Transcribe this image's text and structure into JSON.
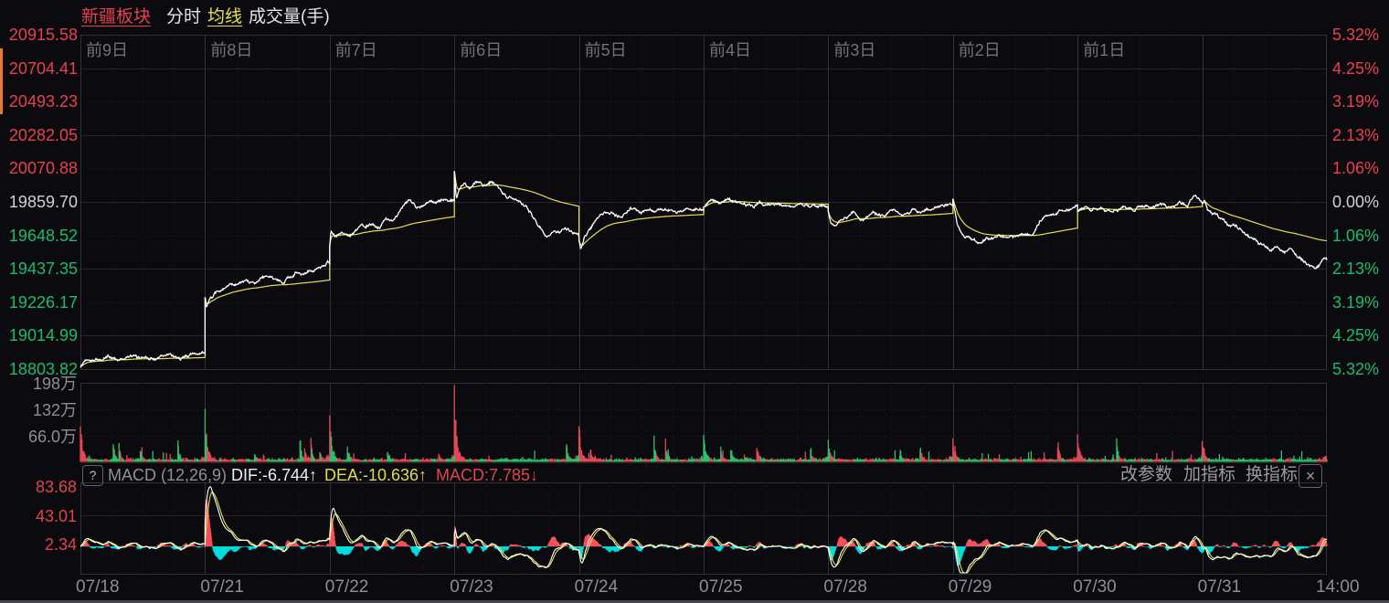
{
  "toolbar": {
    "title": "新疆板块",
    "tab_minute": "分时",
    "tab_ma": "均线",
    "tab_volume": "成交量(手)"
  },
  "colors": {
    "up": "#e8414e",
    "down": "#17bd6e",
    "flat": "#cfcfd6",
    "price_line": "#ffffff",
    "ma_line": "#e5e04a",
    "macd_dif": "#ffffff",
    "macd_dea": "#e5e04a",
    "hist_pos": "#f4515c",
    "hist_neg": "#00dcdc",
    "vol_up": "#e04956",
    "vol_down": "#2fbf6b",
    "grid": "#26262c",
    "grid_strong": "#30303a",
    "grid_dot": "#1e1e26",
    "text_gray": "#8d8d96",
    "text_dim": "#72727b",
    "macd_axis": "#e0434d"
  },
  "price_axis": {
    "left_labels": [
      "20915.58",
      "20704.41",
      "20493.23",
      "20282.05",
      "20070.88",
      "19859.70",
      "19648.52",
      "19437.35",
      "19226.17",
      "19014.99",
      "18803.82"
    ],
    "right_labels": [
      "5.32%",
      "4.25%",
      "3.19%",
      "2.13%",
      "1.06%",
      "0.00%",
      "1.06%",
      "2.13%",
      "3.19%",
      "4.25%",
      "5.32%"
    ]
  },
  "volume_axis": [
    "198万",
    "132万",
    "66.0万"
  ],
  "day_labels": [
    "前9日",
    "前8日",
    "前7日",
    "前6日",
    "前5日",
    "前4日",
    "前3日",
    "前2日",
    "前1日"
  ],
  "x_axis": [
    "07/18",
    "07/21",
    "07/22",
    "07/23",
    "07/24",
    "07/25",
    "07/28",
    "07/29",
    "07/30",
    "07/31"
  ],
  "x_axis_time": "14:00",
  "macd": {
    "help": "?",
    "name": "MACD (12,26,9)",
    "dif_label": "DIF:-6.744↑",
    "dea_label": "DEA:-10.636↑",
    "macd_label": "MACD:7.785↓",
    "btn_params": "改参数",
    "btn_add": "加指标",
    "btn_switch": "换指标",
    "close": "×",
    "axis": [
      "83.68",
      "43.01",
      "2.34"
    ]
  },
  "chart_data": {
    "type": "line",
    "panes": [
      "price",
      "volume",
      "macd"
    ],
    "price": {
      "ylim": [
        18803.82,
        20915.58
      ],
      "baseline": 19859.7,
      "pct_lim": [
        -5.32,
        5.32
      ],
      "days": [
        {
          "date": "07/18",
          "anchors": [
            [
              0,
              18815
            ],
            [
              0.04,
              18862
            ],
            [
              0.1,
              18875
            ],
            [
              0.16,
              18860
            ],
            [
              0.22,
              18880
            ],
            [
              0.3,
              18866
            ],
            [
              0.38,
              18884
            ],
            [
              0.46,
              18870
            ],
            [
              0.54,
              18890
            ],
            [
              0.62,
              18875
            ],
            [
              0.72,
              18894
            ],
            [
              0.82,
              18880
            ],
            [
              0.92,
              18898
            ],
            [
              1,
              18902
            ]
          ]
        },
        {
          "date": "07/21",
          "anchors": [
            [
              0,
              19258
            ],
            [
              0.01,
              19198
            ],
            [
              0.04,
              19262
            ],
            [
              0.1,
              19285
            ],
            [
              0.18,
              19315
            ],
            [
              0.28,
              19345
            ],
            [
              0.36,
              19330
            ],
            [
              0.45,
              19375
            ],
            [
              0.55,
              19385
            ],
            [
              0.63,
              19370
            ],
            [
              0.72,
              19410
            ],
            [
              0.8,
              19415
            ],
            [
              0.88,
              19435
            ],
            [
              0.94,
              19445
            ],
            [
              0.985,
              19480
            ],
            [
              1,
              19458
            ]
          ]
        },
        {
          "date": "07/22",
          "anchors": [
            [
              0,
              19582
            ],
            [
              0.01,
              19668
            ],
            [
              0.04,
              19630
            ],
            [
              0.1,
              19665
            ],
            [
              0.16,
              19640
            ],
            [
              0.24,
              19690
            ],
            [
              0.32,
              19715
            ],
            [
              0.4,
              19700
            ],
            [
              0.45,
              19760
            ],
            [
              0.5,
              19745
            ],
            [
              0.57,
              19810
            ],
            [
              0.63,
              19865
            ],
            [
              0.7,
              19835
            ],
            [
              0.78,
              19865
            ],
            [
              0.85,
              19850
            ],
            [
              0.92,
              19872
            ],
            [
              1,
              19868
            ]
          ]
        },
        {
          "date": "07/23",
          "anchors": [
            [
              0,
              20055
            ],
            [
              0.015,
              19885
            ],
            [
              0.04,
              19935
            ],
            [
              0.08,
              19985
            ],
            [
              0.12,
              19950
            ],
            [
              0.17,
              19992
            ],
            [
              0.23,
              19975
            ],
            [
              0.3,
              19998
            ],
            [
              0.36,
              19940
            ],
            [
              0.43,
              19892
            ],
            [
              0.5,
              19862
            ],
            [
              0.57,
              19828
            ],
            [
              0.63,
              19758
            ],
            [
              0.69,
              19700
            ],
            [
              0.75,
              19648
            ],
            [
              0.79,
              19692
            ],
            [
              0.84,
              19662
            ],
            [
              0.89,
              19703
            ],
            [
              0.95,
              19678
            ],
            [
              1,
              19652
            ]
          ]
        },
        {
          "date": "07/24",
          "anchors": [
            [
              0,
              19618
            ],
            [
              0.012,
              19558
            ],
            [
              0.05,
              19652
            ],
            [
              0.1,
              19705
            ],
            [
              0.17,
              19758
            ],
            [
              0.25,
              19800
            ],
            [
              0.33,
              19778
            ],
            [
              0.42,
              19808
            ],
            [
              0.5,
              19788
            ],
            [
              0.58,
              19818
            ],
            [
              0.66,
              19795
            ],
            [
              0.75,
              19822
            ],
            [
              0.83,
              19802
            ],
            [
              0.9,
              19828
            ],
            [
              1,
              19818
            ]
          ]
        },
        {
          "date": "07/25",
          "anchors": [
            [
              0,
              19828
            ],
            [
              0.06,
              19868
            ],
            [
              0.13,
              19845
            ],
            [
              0.2,
              19878
            ],
            [
              0.28,
              19856
            ],
            [
              0.36,
              19838
            ],
            [
              0.45,
              19858
            ],
            [
              0.53,
              19832
            ],
            [
              0.62,
              19845
            ],
            [
              0.7,
              19820
            ],
            [
              0.78,
              19838
            ],
            [
              0.86,
              19818
            ],
            [
              0.93,
              19832
            ],
            [
              1,
              19822
            ]
          ]
        },
        {
          "date": "07/28",
          "anchors": [
            [
              0,
              19798
            ],
            [
              0.02,
              19722
            ],
            [
              0.06,
              19698
            ],
            [
              0.12,
              19758
            ],
            [
              0.2,
              19788
            ],
            [
              0.28,
              19756
            ],
            [
              0.36,
              19796
            ],
            [
              0.44,
              19775
            ],
            [
              0.52,
              19806
            ],
            [
              0.6,
              19785
            ],
            [
              0.68,
              19812
            ],
            [
              0.76,
              19795
            ],
            [
              0.84,
              19818
            ],
            [
              0.9,
              19832
            ],
            [
              0.96,
              19845
            ],
            [
              1,
              19858
            ]
          ]
        },
        {
          "date": "07/29",
          "anchors": [
            [
              0,
              19880
            ],
            [
              0.012,
              19802
            ],
            [
              0.035,
              19702
            ],
            [
              0.08,
              19648
            ],
            [
              0.14,
              19622
            ],
            [
              0.2,
              19610
            ],
            [
              0.27,
              19642
            ],
            [
              0.33,
              19628
            ],
            [
              0.4,
              19645
            ],
            [
              0.47,
              19638
            ],
            [
              0.55,
              19645
            ],
            [
              0.62,
              19652
            ],
            [
              0.66,
              19688
            ],
            [
              0.7,
              19745
            ],
            [
              0.76,
              19772
            ],
            [
              0.82,
              19790
            ],
            [
              0.88,
              19808
            ],
            [
              0.94,
              19822
            ],
            [
              1,
              19838
            ]
          ]
        },
        {
          "date": "07/30",
          "anchors": [
            [
              0,
              19802
            ],
            [
              0.06,
              19832
            ],
            [
              0.12,
              19800
            ],
            [
              0.2,
              19828
            ],
            [
              0.28,
              19792
            ],
            [
              0.36,
              19822
            ],
            [
              0.44,
              19800
            ],
            [
              0.52,
              19832
            ],
            [
              0.6,
              19812
            ],
            [
              0.68,
              19842
            ],
            [
              0.75,
              19820
            ],
            [
              0.82,
              19852
            ],
            [
              0.88,
              19825
            ],
            [
              0.93,
              19888
            ],
            [
              0.97,
              19872
            ],
            [
              1,
              19860
            ]
          ]
        },
        {
          "date": "07/31",
          "anchors": [
            [
              0,
              19852
            ],
            [
              0.02,
              19868
            ],
            [
              0.05,
              19802
            ],
            [
              0.1,
              19782
            ],
            [
              0.16,
              19748
            ],
            [
              0.22,
              19700
            ],
            [
              0.3,
              19682
            ],
            [
              0.38,
              19645
            ],
            [
              0.46,
              19602
            ],
            [
              0.54,
              19565
            ],
            [
              0.6,
              19588
            ],
            [
              0.66,
              19545
            ],
            [
              0.72,
              19558
            ],
            [
              0.78,
              19512
            ],
            [
              0.84,
              19478
            ],
            [
              0.9,
              19452
            ],
            [
              0.94,
              19448
            ],
            [
              0.97,
              19495
            ],
            [
              1,
              19478
            ]
          ]
        }
      ]
    },
    "volume": {
      "unit": "万",
      "gridlines": [
        198,
        132,
        66
      ],
      "open_spikes": [
        94,
        132,
        122,
        198,
        90,
        68,
        58,
        60,
        72,
        55
      ],
      "open_colors": [
        "up",
        "down",
        "up",
        "up",
        "up",
        "down",
        "down",
        "up",
        "up",
        "up"
      ],
      "after_colors": [
        "up",
        "up",
        "down",
        "up",
        "up",
        "down",
        "up",
        "up",
        "up",
        "up"
      ]
    },
    "macd": {
      "params": [
        12,
        26,
        9
      ],
      "dif": -6.744,
      "dea": -10.636,
      "macd": 7.785,
      "gridlines": [
        83.68,
        43.01,
        2.34
      ]
    }
  }
}
